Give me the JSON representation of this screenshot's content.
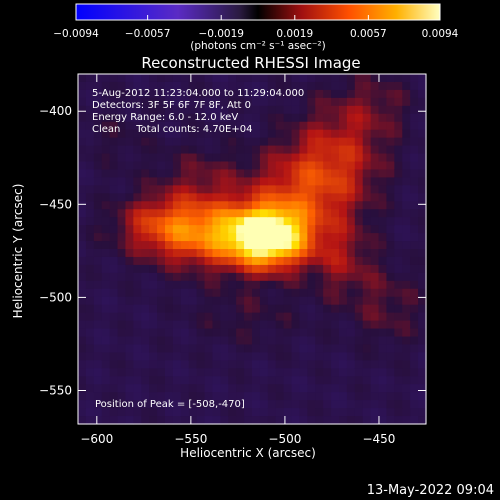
{
  "chart_data": {
    "type": "heatmap",
    "title": "Reconstructed RHESSI Image",
    "xlabel": "Heliocentric X (arcsec)",
    "ylabel": "Heliocentric Y (arcsec)",
    "xlim": [
      -610,
      -425
    ],
    "ylim": [
      -568,
      -380
    ],
    "xticks": [
      -600,
      -550,
      -500,
      -450
    ],
    "yticks": [
      -400,
      -450,
      -500,
      -550
    ],
    "colorbar": {
      "ticks": [
        "-0.0094",
        "-0.0057",
        "-0.0019",
        "0.0019",
        "0.0057",
        "0.0094"
      ],
      "min": -0.0094,
      "max": 0.0094,
      "unit_label": "(photons cm⁻² s⁻¹ asec⁻²)"
    },
    "info_lines": [
      "5-Aug-2012 11:23:04.000 to 11:29:04.000",
      "Detectors: 3F 5F 6F 7F 8F, Att 0",
      "Energy Range: 6.0 - 12.0 keV",
      "Clean     Total counts: 4.70E+04"
    ],
    "peak_label": "Position of Peak = [-508,-470]",
    "peak": {
      "x": -508,
      "y": -470,
      "value": 0.0094
    },
    "sources": [
      {
        "x": -508,
        "y": -468,
        "sx": 14,
        "sy": 11,
        "amp": 0.0094
      },
      {
        "x": -535,
        "y": -466,
        "sx": 26,
        "sy": 13,
        "amp": 0.0062
      },
      {
        "x": -490,
        "y": -442,
        "sx": 20,
        "sy": 17,
        "amp": 0.004
      },
      {
        "x": -470,
        "y": -420,
        "sx": 18,
        "sy": 20,
        "amp": 0.003
      },
      {
        "x": -565,
        "y": -460,
        "sx": 18,
        "sy": 11,
        "amp": 0.003
      },
      {
        "x": -470,
        "y": -480,
        "sx": 12,
        "sy": 15,
        "amp": 0.0025
      },
      {
        "x": -445,
        "y": -505,
        "sx": 14,
        "sy": 16,
        "amp": 0.0018
      },
      {
        "x": -545,
        "y": -435,
        "sx": 16,
        "sy": 12,
        "amp": 0.0018
      },
      {
        "x": -520,
        "y": -510,
        "sx": 22,
        "sy": 12,
        "amp": 0.0012
      },
      {
        "x": -450,
        "y": -395,
        "sx": 14,
        "sy": 12,
        "amp": 0.0014
      },
      {
        "x": -590,
        "y": -415,
        "sx": 14,
        "sy": 12,
        "amp": 0.0009
      }
    ],
    "grid": false
  },
  "timestamp": "13-May-2022 09:04"
}
